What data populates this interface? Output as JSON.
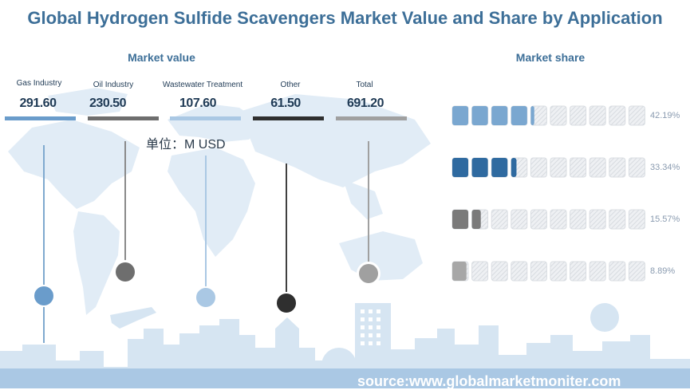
{
  "title": "Global Hydrogen Sulfide Scavengers Market Value and Share by Application",
  "market_value_heading": "Market value",
  "market_share_heading": "Market share",
  "unit_label": "单位：M USD",
  "source": "source:www.globalmarketmoniter.com",
  "colors": {
    "title": "#3d6f98",
    "gas": "#6a9ccb",
    "oil": "#6e6e6e",
    "wastewater": "#aac8e4",
    "other": "#2f2f2f",
    "total": "#a0a0a0",
    "share_blue_light": "#7aa7d0",
    "share_blue_dark": "#2f6aa0",
    "share_gray_dark": "#7a7a7a",
    "share_gray_light": "#a7a7a7"
  },
  "chart_data": [
    {
      "type": "bar",
      "title": "Market value",
      "categories": [
        "Gas Industry",
        "Oil Industry",
        "Wastewater Treatment",
        "Other",
        "Total"
      ],
      "values": [
        291.6,
        230.5,
        107.6,
        61.5,
        691.2
      ],
      "value_labels": [
        "291.60",
        "230.50",
        "107.60",
        "61.50",
        "691.20"
      ]
    },
    {
      "type": "bar",
      "title": "Market share",
      "values": [
        42.19,
        33.34,
        15.57,
        8.89
      ],
      "value_labels": [
        "42.19%",
        "33.34%",
        "15.57%",
        "8.89%"
      ]
    }
  ]
}
